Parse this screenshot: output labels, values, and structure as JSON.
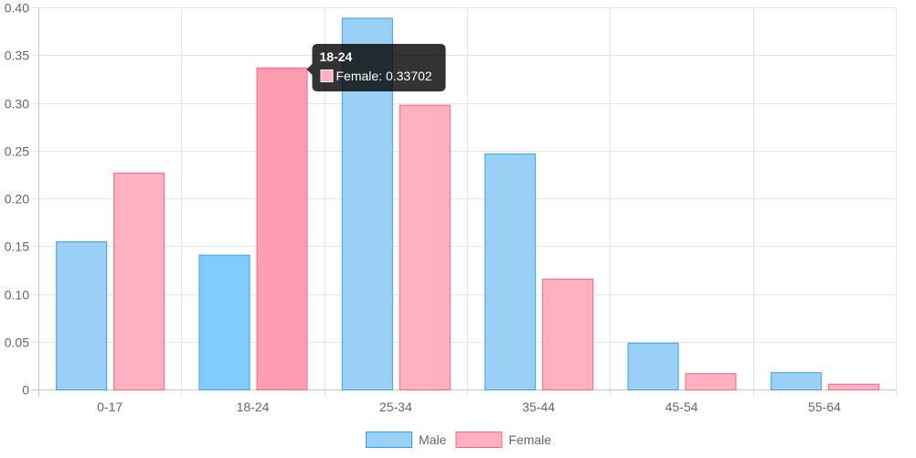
{
  "chart_data": {
    "type": "bar",
    "categories": [
      "0-17",
      "18-24",
      "25-34",
      "35-44",
      "45-54",
      "55-64"
    ],
    "series": [
      {
        "name": "Male",
        "values": [
          0.155,
          0.141,
          0.389,
          0.247,
          0.049,
          0.018
        ],
        "fill": "#9ad0f5",
        "hover_fill": "#7fcaff",
        "stroke": "#36a2eb"
      },
      {
        "name": "Female",
        "values": [
          0.227,
          0.33702,
          0.298,
          0.116,
          0.017,
          0.006
        ],
        "fill": "#ffb1c1",
        "hover_fill": "#ff9db2",
        "stroke": "#ff6384"
      }
    ],
    "y_ticks": [
      "0",
      "0.05",
      "0.10",
      "0.15",
      "0.20",
      "0.25",
      "0.30",
      "0.35",
      "0.40"
    ],
    "ylim": [
      0,
      0.4
    ],
    "grid": true,
    "legend_position": "bottom",
    "tooltip": {
      "category_index": 1,
      "series_index": 1,
      "title": "18-24",
      "body": "Female: 0.33702"
    }
  }
}
